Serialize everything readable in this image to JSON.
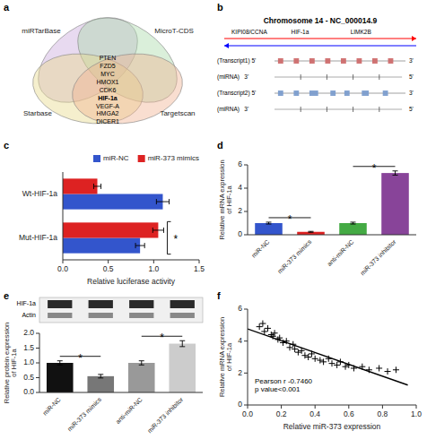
{
  "chart_data": [
    {
      "type": "venn",
      "panel": "a",
      "categories": [
        "miRTarBase",
        "MicroT-CDS",
        "Starbase",
        "Targetscan"
      ],
      "colors": [
        "#C8A8DC",
        "#A8D8A8",
        "#E8D888",
        "#F0B090"
      ],
      "genes": [
        "PTEN",
        "FZD5",
        "MYC",
        "HMOX1",
        "CDK6",
        "HIF-1a",
        "VEGF-A",
        "HMGA2",
        "DICER1"
      ],
      "highlight": "HIF-1a"
    },
    {
      "type": "diagram",
      "panel": "b",
      "title": "Chromosome 14 - NC_000014.9",
      "gene_labels": [
        "KIPI08/CCNA",
        "HIF-1a",
        "LIMK2B"
      ],
      "rows": [
        {
          "label": "(Transcript1) 5'",
          "end_label": "3'",
          "color": "#CC6666"
        },
        {
          "label": "(miRNA)   3'",
          "end_label": "5'"
        },
        {
          "label": "(Transcript2) 5'",
          "end_label": "3'",
          "color": "#7799CC"
        },
        {
          "label": "(miRNA)   3'",
          "end_label": "5'"
        }
      ]
    },
    {
      "type": "bar",
      "panel": "c",
      "orientation": "horizontal",
      "categories": [
        "Mut-HIF-1a",
        "Wt-HIF-1a"
      ],
      "series": [
        {
          "name": "miR-NC",
          "color": "#3355CC",
          "values": [
            0.85,
            1.1
          ],
          "errors": [
            0.05,
            0.07
          ]
        },
        {
          "name": "miR-373 mimics",
          "color": "#DD2222",
          "values": [
            1.05,
            0.38
          ],
          "errors": [
            0.06,
            0.04
          ]
        }
      ],
      "xlabel": "Relative luciferase activity",
      "xlim": [
        0,
        1.5
      ],
      "xticks": [
        {
          "value": 0,
          "label": "0.0"
        },
        0.5,
        {
          "value": 1,
          "label": "1.0"
        },
        1.5
      ],
      "legend": "upper right",
      "annotations": [
        "*"
      ]
    },
    {
      "type": "bar",
      "panel": "d",
      "categories": [
        "miR-NC",
        "miR-373 mimics",
        "anti-miR-NC",
        "miR-373 inhibitor"
      ],
      "values": [
        1.0,
        0.25,
        1.0,
        5.3
      ],
      "errors": [
        0.08,
        0.04,
        0.08,
        0.18
      ],
      "colors": [
        "#3355CC",
        "#DD2222",
        "#44AA44",
        "#884499"
      ],
      "ylabel": "Relative mRNA expression\nof HIF-1a",
      "ylim": [
        0,
        6
      ],
      "yticks": [
        0,
        2,
        4,
        6
      ],
      "annotations": [
        "*",
        "*"
      ]
    },
    {
      "type": "bar",
      "panel": "e",
      "blot_labels": [
        "HIF-1a",
        "Actin"
      ],
      "categories": [
        "miR-NC",
        "miR-373 mimics",
        "anti-miR-NC",
        "miR-373 inhibitor"
      ],
      "values": [
        1.0,
        0.55,
        1.0,
        1.65
      ],
      "errors": [
        0.07,
        0.06,
        0.07,
        0.1
      ],
      "colors": [
        "#111111",
        "#777777",
        "#999999",
        "#CCCCCC"
      ],
      "ylabel": "Relative protein expression\nof HIF-1a",
      "ylim": [
        0,
        2.0
      ],
      "yticks": [
        {
          "value": 0,
          "label": "0.0"
        },
        0.5,
        {
          "value": 1,
          "label": "1.0"
        },
        1.5,
        {
          "value": 2,
          "label": "2.0"
        }
      ],
      "annotations": [
        "*",
        "*"
      ]
    },
    {
      "type": "scatter",
      "panel": "f",
      "series": [
        {
          "type": "scatter",
          "marker": "plus",
          "color": "#000000",
          "x": [
            0.07,
            0.09,
            0.1,
            0.12,
            0.14,
            0.15,
            0.16,
            0.18,
            0.19,
            0.21,
            0.23,
            0.25,
            0.27,
            0.28,
            0.3,
            0.32,
            0.34,
            0.36,
            0.38,
            0.4,
            0.43,
            0.45,
            0.48,
            0.5,
            0.53,
            0.55,
            0.58,
            0.6,
            0.63,
            0.68,
            0.72,
            0.78,
            0.83,
            0.88
          ],
          "values": [
            4.9,
            5.1,
            4.6,
            4.8,
            4.4,
            4.3,
            4.5,
            4.1,
            4.2,
            3.9,
            4.0,
            3.6,
            3.8,
            3.5,
            3.3,
            3.4,
            3.1,
            3.0,
            3.2,
            2.9,
            2.8,
            2.7,
            2.9,
            2.6,
            2.5,
            2.7,
            2.4,
            2.5,
            2.3,
            2.4,
            2.2,
            2.3,
            2.1,
            2.2
          ]
        },
        {
          "type": "line",
          "line_style": "solid",
          "color": "#000000",
          "x": [
            0,
            0.95
          ],
          "values": [
            4.76372,
            1.24869
          ]
        }
      ],
      "xlabel": "Relative miR-373 expression",
      "ylabel": "Relative mRNA expression\nof HIF-1a",
      "xlim": [
        0,
        1.0
      ],
      "ylim": [
        0,
        6
      ],
      "xticks": [
        {
          "value": 0,
          "label": "0.0"
        },
        0.2,
        0.4,
        0.6,
        0.8,
        {
          "value": 1,
          "label": "1.0"
        }
      ],
      "yticks": [
        0,
        2,
        4,
        6
      ],
      "annotations": [
        "Pearson r -0.7460\np value<0.001"
      ]
    }
  ]
}
